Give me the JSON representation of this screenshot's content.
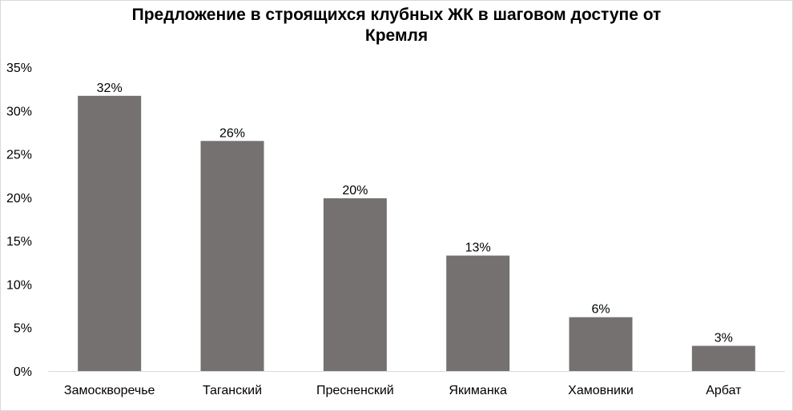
{
  "chart_data": {
    "type": "bar",
    "title_lines": [
      "Предложение в строящихся клубных ЖК в шаговом доступе от",
      "Кремля"
    ],
    "categories": [
      "Замоскворечье",
      "Таганский",
      "Пресненский",
      "Якиманка",
      "Хамовники",
      "Арбат"
    ],
    "values": [
      31.7,
      26.5,
      19.9,
      13.3,
      6.2,
      2.9
    ],
    "data_labels": [
      "32%",
      "26%",
      "20%",
      "13%",
      "6%",
      "3%"
    ],
    "y_ticks": [
      "0%",
      "5%",
      "10%",
      "15%",
      "20%",
      "25%",
      "30%",
      "35%"
    ],
    "ylim": [
      0,
      35
    ],
    "ytick_step": 5,
    "grid": false,
    "legend": "none",
    "bar_color": "#767171",
    "axis_color": "#d9d9d9"
  }
}
